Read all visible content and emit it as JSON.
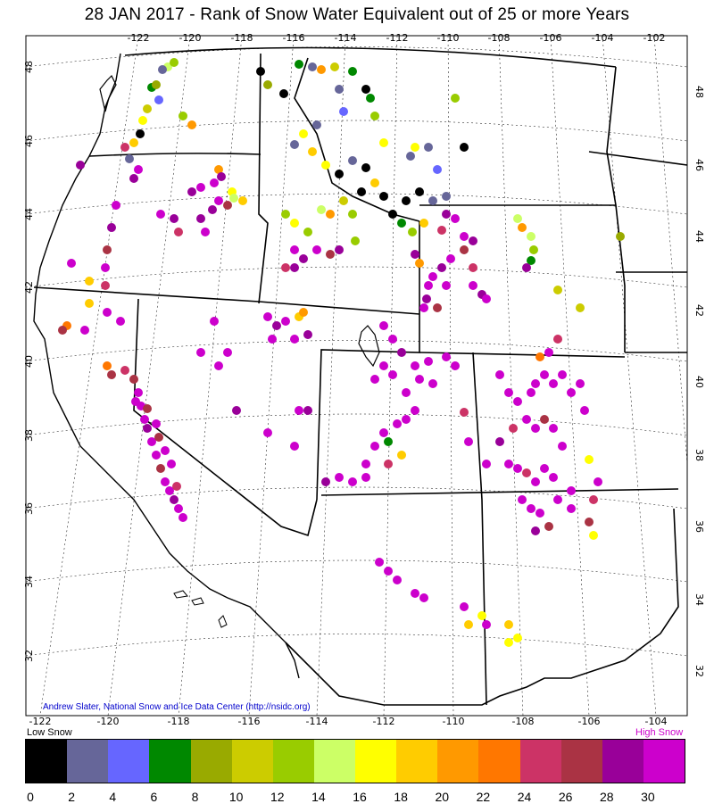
{
  "title": "28 JAN 2017    - Rank of Snow Water Equivalent out of 25 or more Years",
  "credit": "Andrew Slater, National Snow and Ice Data Center (http://nsidc.org)",
  "legend": {
    "low_label": "Low Snow",
    "high_label": "High Snow",
    "colors": [
      "#000000",
      "#666699",
      "#6666ff",
      "#008800",
      "#99aa00",
      "#cccc00",
      "#99cc00",
      "#ccff66",
      "#ffff00",
      "#ffcc00",
      "#ff9900",
      "#ff7700",
      "#cc3366",
      "#aa3344",
      "#990099",
      "#cc00cc"
    ],
    "ticks": [
      "0",
      "2",
      "4",
      "6",
      "8",
      "10",
      "12",
      "14",
      "16",
      "18",
      "20",
      "22",
      "24",
      "26",
      "28",
      "30"
    ]
  },
  "axes": {
    "top_lon_ticks": [
      "-122",
      "-120",
      "-118",
      "-116",
      "-114",
      "-112",
      "-110",
      "-108",
      "-106",
      "-104",
      "-102"
    ],
    "bottom_lon_ticks": [
      "-122",
      "-120",
      "-118",
      "-116",
      "-114",
      "-112",
      "-110",
      "-108",
      "-106",
      "-104"
    ],
    "left_lat_ticks": [
      "48",
      "46",
      "44",
      "42",
      "40",
      "38",
      "36",
      "34",
      "32"
    ],
    "right_lat_ticks": [
      "48",
      "46",
      "44",
      "42",
      "40",
      "38",
      "36",
      "34",
      "32"
    ]
  }
}
